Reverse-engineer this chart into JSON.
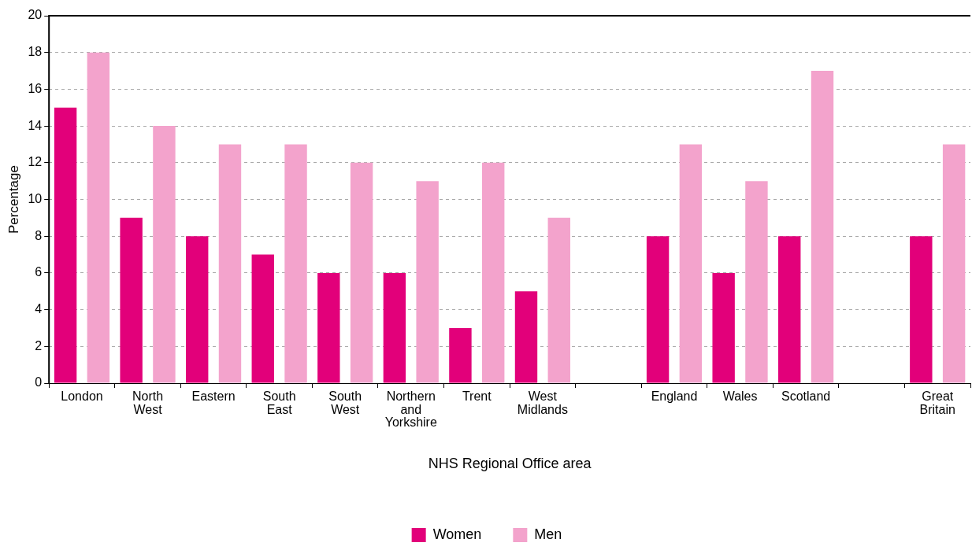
{
  "chart_data": {
    "type": "bar",
    "xlabel": "NHS Regional Office area",
    "ylabel": "Percentage",
    "categories": [
      "London",
      "North West",
      "Eastern",
      "South East",
      "South West",
      "Northern and Yorkshire",
      "Trent",
      "West Midlands",
      null,
      "England",
      "Wales",
      "Scotland",
      null,
      "Great Britain"
    ],
    "series": [
      {
        "name": "Women",
        "color": "#e2007a",
        "values": [
          15,
          9,
          8,
          7,
          6,
          6,
          3,
          5,
          null,
          8,
          6,
          8,
          null,
          8
        ]
      },
      {
        "name": "Men",
        "color": "#f3a3cc",
        "values": [
          18,
          14,
          13,
          13,
          12,
          11,
          12,
          9,
          null,
          13,
          11,
          17,
          null,
          13
        ]
      }
    ],
    "ylim": [
      0,
      20
    ],
    "yticks": [
      0,
      2,
      4,
      6,
      8,
      10,
      12,
      14,
      16,
      18,
      20
    ],
    "grid": "y",
    "legend": "bottom"
  }
}
